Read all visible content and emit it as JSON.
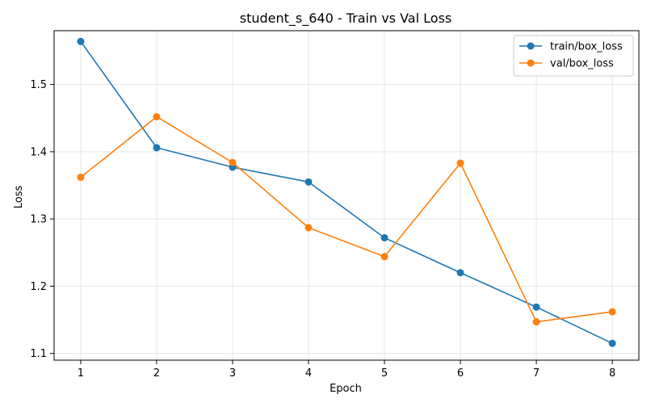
{
  "chart_data": {
    "type": "line",
    "title": "student_s_640 - Train vs Val Loss",
    "xlabel": "Epoch",
    "ylabel": "Loss",
    "x": [
      1,
      2,
      3,
      4,
      5,
      6,
      7,
      8
    ],
    "xlim": [
      0.65,
      8.35
    ],
    "ylim": [
      1.09,
      1.58
    ],
    "xticks": [
      1,
      2,
      3,
      4,
      5,
      6,
      7,
      8
    ],
    "yticks": [
      1.1,
      1.2,
      1.3,
      1.4,
      1.5
    ],
    "ytick_labels": [
      "1.1",
      "1.2",
      "1.3",
      "1.4",
      "1.5"
    ],
    "grid": true,
    "legend_position": "top-right",
    "series": [
      {
        "name": "train/box_loss",
        "color": "#1f77b4",
        "values": [
          1.564,
          1.406,
          1.377,
          1.355,
          1.272,
          1.22,
          1.169,
          1.115
        ]
      },
      {
        "name": "val/box_loss",
        "color": "#ff7f0e",
        "values": [
          1.362,
          1.452,
          1.384,
          1.287,
          1.244,
          1.383,
          1.147,
          1.162
        ]
      }
    ]
  }
}
